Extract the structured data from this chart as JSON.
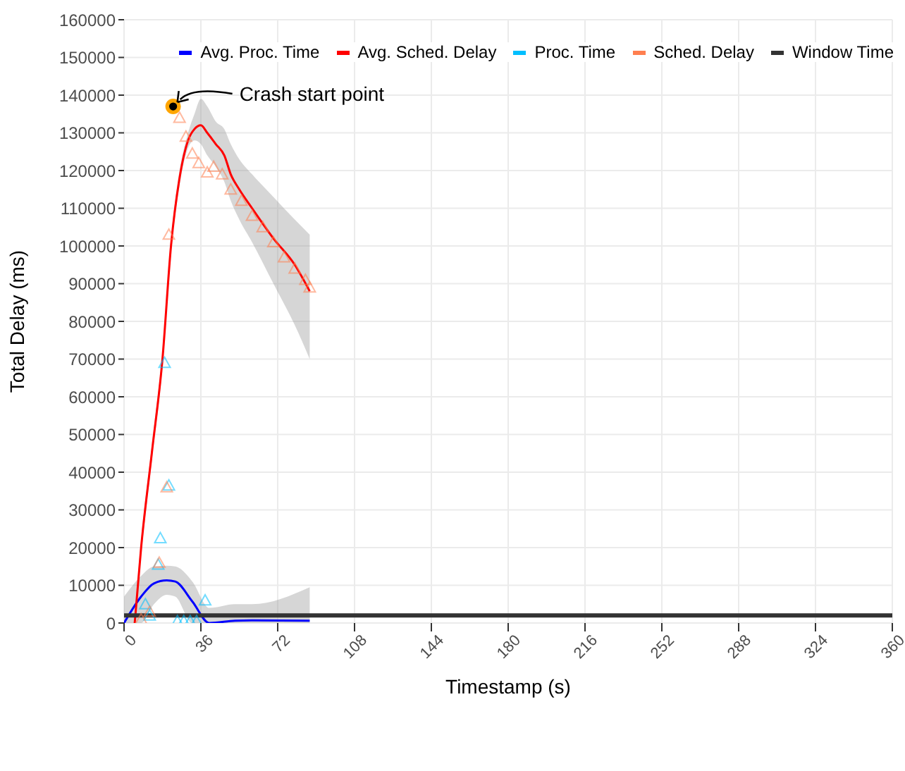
{
  "chart_data": {
    "type": "line",
    "xlabel": "Timestamp (s)",
    "ylabel": "Total Delay (ms)",
    "xlim": [
      0,
      360
    ],
    "xticks": [
      0,
      36,
      72,
      108,
      144,
      180,
      216,
      252,
      288,
      324,
      360
    ],
    "ylim": [
      0,
      160000
    ],
    "yticks": [
      0,
      10000,
      20000,
      30000,
      40000,
      50000,
      60000,
      70000,
      80000,
      90000,
      100000,
      110000,
      120000,
      130000,
      140000,
      150000,
      160000
    ],
    "grid": true,
    "legend": "top right",
    "marker": "none",
    "line_style": "solid",
    "annotations": [
      {
        "text": "Crash start point",
        "x": 23,
        "y": 137000
      }
    ],
    "series": [
      {
        "name": "Avg. Proc. Time",
        "color": "#0000ff",
        "x": [
          0,
          8,
          14,
          20,
          24,
          32,
          40,
          52,
          60,
          87
        ],
        "values": [
          0,
          7000,
          10500,
          11300,
          11000,
          5700,
          0,
          600,
          700,
          600
        ],
        "lower": [
          0,
          0,
          5000,
          7500,
          7000,
          0,
          0,
          0,
          0,
          0
        ],
        "upper": [
          7000,
          12500,
          15000,
          15200,
          15000,
          11000,
          4000,
          5000,
          5000,
          9500
        ]
      },
      {
        "name": "Avg. Sched. Delay",
        "color": "#ff0000",
        "x": [
          5,
          8,
          13,
          18,
          22,
          26,
          30,
          33,
          36,
          39,
          43,
          47,
          50,
          54,
          60,
          70,
          80,
          87
        ],
        "values": [
          0,
          20000,
          45000,
          70000,
          100000,
          118000,
          128000,
          131000,
          132000,
          130000,
          127000,
          124000,
          119000,
          115000,
          110000,
          102000,
          95000,
          88000
        ],
        "lower": [
          0,
          18000,
          43000,
          68000,
          98000,
          116000,
          126000,
          128000,
          127000,
          124000,
          121000,
          117000,
          112000,
          107000,
          101000,
          90000,
          79000,
          70000
        ],
        "upper": [
          2000,
          22000,
          47000,
          72000,
          102000,
          120000,
          130000,
          135000,
          139000,
          137000,
          133000,
          131000,
          127000,
          123000,
          119000,
          113000,
          107000,
          103000
        ]
      },
      {
        "name": "Proc. Time",
        "type": "scatter",
        "marker": "triangle",
        "color": "#00bfff",
        "x": [
          10,
          12,
          16,
          17,
          19,
          21,
          25,
          28,
          31,
          34,
          38
        ],
        "values": [
          5000,
          2000,
          15500,
          22500,
          69000,
          36500,
          500,
          500,
          500,
          500,
          6000
        ]
      },
      {
        "name": "Sched. Delay",
        "type": "scatter",
        "marker": "triangle",
        "color": "#ff7f50",
        "x": [
          8,
          12,
          16.5,
          20,
          21,
          26,
          29,
          32,
          35,
          39,
          42,
          46,
          50,
          55,
          60,
          65,
          70,
          75,
          80,
          85,
          87
        ],
        "values": [
          1000,
          3000,
          16000,
          36000,
          103000,
          134000,
          129000,
          124500,
          122000,
          119500,
          121000,
          119000,
          115000,
          112000,
          108000,
          105000,
          101000,
          97000,
          94000,
          91000,
          89000
        ]
      },
      {
        "name": "Window Time",
        "color": "#333333",
        "x": [
          0,
          360
        ],
        "values": [
          2000,
          2000
        ]
      }
    ]
  }
}
